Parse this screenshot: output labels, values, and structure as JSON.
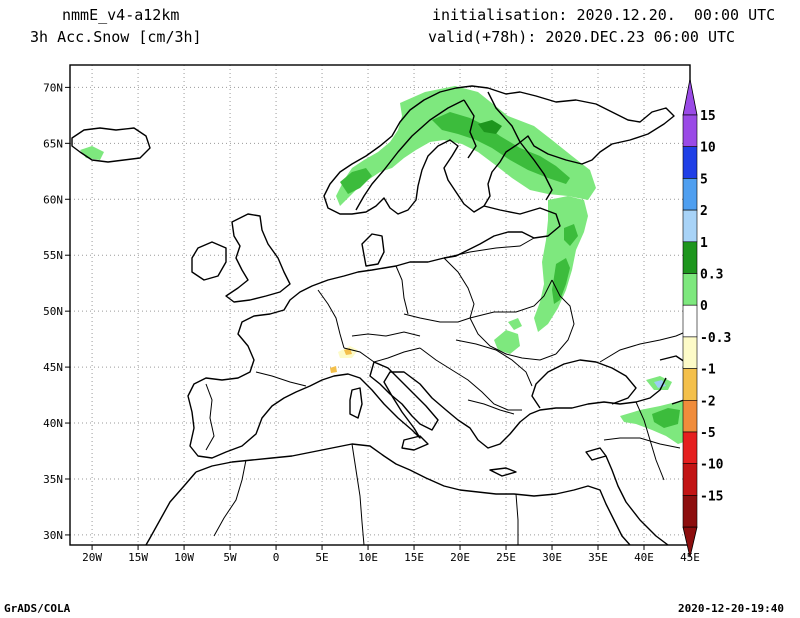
{
  "header": {
    "model": "nmmE_v4-a12km",
    "variable": "3h Acc.Snow [cm/3h]",
    "initialisation": "initialisation: 2020.12.20.  00:00 UTC",
    "valid": "valid(+78h): 2020.DEC.23 06:00 UTC"
  },
  "footer": {
    "software": "GrADS/COLA",
    "timestamp": "2020-12-20-19:40"
  },
  "map": {
    "lon_ticks": [
      "20W",
      "15W",
      "10W",
      "5W",
      "0",
      "5E",
      "10E",
      "15E",
      "20E",
      "25E",
      "30E",
      "35E",
      "40E",
      "45E"
    ],
    "lat_ticks": [
      "70N",
      "65N",
      "60N",
      "55N",
      "50N",
      "45N",
      "40N",
      "35N",
      "30N"
    ],
    "colors": {
      "green_light": "#7ee87e",
      "green_mid": "#3cbc3c",
      "green_dark": "#1e961e",
      "blue_light": "#9ccdf5",
      "border": "#000000"
    }
  },
  "colorbar": {
    "labels": [
      "15",
      "10",
      "5",
      "2",
      "1",
      "0.3",
      "0",
      "-0.3",
      "-1",
      "-2",
      "-5",
      "-10",
      "-15"
    ],
    "bins": [
      "#9a4ae6",
      "#1f3fe6",
      "#4f9ff0",
      "#a8d3f7",
      "#1e961e",
      "#7ee87e",
      "#ffffff",
      "#fdfbc8",
      "#f4c04b",
      "#f08c3b",
      "#e51f1f",
      "#c21414",
      "#8c0e0e"
    ],
    "top_arrow_color": "#9a4ae6",
    "bottom_arrow_color": "#8c0e0e"
  }
}
